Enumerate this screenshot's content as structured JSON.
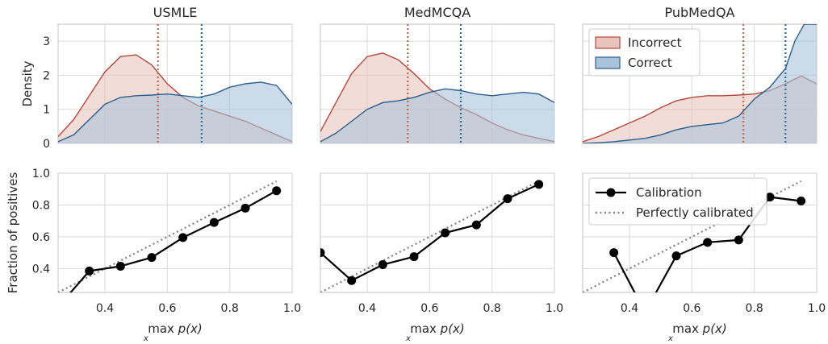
{
  "figure": {
    "density_ylabel": "Density",
    "calibration_ylabel": "Fraction of positives",
    "xlabel_main": "max p(x)",
    "xlabel_sub": "x"
  },
  "colors": {
    "incorrect_line": "#b5483a",
    "incorrect_fill": "#e9c4bd",
    "correct_line": "#2c5f8d",
    "correct_fill": "#aac3da",
    "incorrect_vline": "#b86a4e",
    "correct_vline": "#2e6a98",
    "calibration": "#000000",
    "perfect": "#7f7f7f"
  },
  "chart_data": [
    {
      "type": "area",
      "panel": "density",
      "title": "USMLE",
      "xlim": [
        0.25,
        1.0
      ],
      "ylim": [
        0,
        3.5
      ],
      "xticks": [
        0.4,
        0.6,
        0.8,
        1.0
      ],
      "yticks": [
        0,
        1,
        2,
        3
      ],
      "series": [
        {
          "name": "Incorrect",
          "x": [
            0.25,
            0.3,
            0.35,
            0.4,
            0.45,
            0.5,
            0.55,
            0.6,
            0.65,
            0.7,
            0.75,
            0.8,
            0.85,
            0.9,
            0.95,
            1.0
          ],
          "y": [
            0.2,
            0.7,
            1.4,
            2.1,
            2.55,
            2.6,
            2.3,
            1.75,
            1.35,
            1.1,
            0.95,
            0.8,
            0.65,
            0.45,
            0.25,
            0.05
          ]
        },
        {
          "name": "Correct",
          "x": [
            0.25,
            0.3,
            0.35,
            0.4,
            0.45,
            0.5,
            0.55,
            0.6,
            0.65,
            0.7,
            0.75,
            0.8,
            0.85,
            0.9,
            0.95,
            1.0
          ],
          "y": [
            0.05,
            0.25,
            0.7,
            1.15,
            1.35,
            1.4,
            1.42,
            1.45,
            1.4,
            1.35,
            1.45,
            1.65,
            1.75,
            1.8,
            1.7,
            1.15
          ]
        }
      ],
      "vlines": {
        "incorrect": 0.57,
        "correct": 0.71
      }
    },
    {
      "type": "area",
      "panel": "density",
      "title": "MedMCQA",
      "xlim": [
        0.25,
        1.0
      ],
      "ylim": [
        0,
        3.5
      ],
      "xticks": [
        0.4,
        0.6,
        0.8,
        1.0
      ],
      "yticks": [
        0,
        1,
        2,
        3
      ],
      "series": [
        {
          "name": "Incorrect",
          "x": [
            0.25,
            0.3,
            0.35,
            0.4,
            0.45,
            0.5,
            0.55,
            0.6,
            0.65,
            0.7,
            0.75,
            0.8,
            0.85,
            0.9,
            0.95,
            1.0
          ],
          "y": [
            0.35,
            1.2,
            2.05,
            2.55,
            2.65,
            2.45,
            2.05,
            1.6,
            1.3,
            1.05,
            0.85,
            0.6,
            0.4,
            0.25,
            0.15,
            0.05
          ]
        },
        {
          "name": "Correct",
          "x": [
            0.25,
            0.3,
            0.35,
            0.4,
            0.45,
            0.5,
            0.55,
            0.6,
            0.65,
            0.7,
            0.75,
            0.8,
            0.85,
            0.9,
            0.95,
            1.0
          ],
          "y": [
            0.05,
            0.3,
            0.65,
            1.0,
            1.2,
            1.25,
            1.35,
            1.5,
            1.6,
            1.55,
            1.45,
            1.4,
            1.45,
            1.5,
            1.45,
            1.2
          ]
        }
      ],
      "vlines": {
        "incorrect": 0.53,
        "correct": 0.7
      }
    },
    {
      "type": "area",
      "panel": "density",
      "title": "PubMedQA",
      "xlim": [
        0.25,
        1.0
      ],
      "ylim": [
        0,
        3.5
      ],
      "xticks": [
        0.4,
        0.6,
        0.8,
        1.0
      ],
      "yticks": [
        0,
        1,
        2,
        3
      ],
      "legend": {
        "location": "upper-left",
        "entries": [
          "Incorrect",
          "Correct"
        ]
      },
      "series": [
        {
          "name": "Incorrect",
          "x": [
            0.25,
            0.3,
            0.35,
            0.4,
            0.45,
            0.5,
            0.55,
            0.6,
            0.65,
            0.7,
            0.75,
            0.8,
            0.85,
            0.9,
            0.95,
            1.0
          ],
          "y": [
            0.05,
            0.2,
            0.4,
            0.6,
            0.8,
            1.05,
            1.25,
            1.35,
            1.4,
            1.4,
            1.42,
            1.45,
            1.55,
            1.75,
            1.98,
            1.75
          ]
        },
        {
          "name": "Correct",
          "x": [
            0.25,
            0.3,
            0.35,
            0.4,
            0.45,
            0.5,
            0.55,
            0.6,
            0.65,
            0.7,
            0.75,
            0.8,
            0.85,
            0.9,
            0.93,
            0.96,
            1.0
          ],
          "y": [
            0.0,
            0.02,
            0.05,
            0.1,
            0.15,
            0.25,
            0.4,
            0.5,
            0.55,
            0.6,
            0.8,
            1.3,
            1.65,
            2.2,
            3.0,
            3.5,
            3.5
          ]
        }
      ],
      "vlines": {
        "incorrect": 0.765,
        "correct": 0.9
      }
    },
    {
      "type": "line",
      "panel": "calibration",
      "xlim": [
        0.25,
        1.0
      ],
      "ylim": [
        0.25,
        1.0
      ],
      "xticks": [
        0.4,
        0.6,
        0.8,
        1.0
      ],
      "yticks": [
        0.4,
        0.6,
        0.8,
        1.0
      ],
      "series": [
        {
          "name": "Calibration",
          "x": [
            0.25,
            0.35,
            0.45,
            0.55,
            0.65,
            0.75,
            0.85,
            0.95
          ],
          "y": [
            0.16,
            0.385,
            0.415,
            0.47,
            0.595,
            0.69,
            0.78,
            0.89
          ],
          "markers": [
            false,
            true,
            true,
            true,
            true,
            true,
            true,
            true
          ]
        },
        {
          "name": "Perfectly calibrated",
          "x": [
            0.25,
            0.95
          ],
          "y": [
            0.25,
            0.95
          ]
        }
      ]
    },
    {
      "type": "line",
      "panel": "calibration",
      "xlim": [
        0.25,
        1.0
      ],
      "ylim": [
        0.25,
        1.0
      ],
      "xticks": [
        0.4,
        0.6,
        0.8,
        1.0
      ],
      "yticks": [
        0.4,
        0.6,
        0.8,
        1.0
      ],
      "series": [
        {
          "name": "Calibration",
          "x": [
            0.25,
            0.35,
            0.45,
            0.55,
            0.65,
            0.75,
            0.85,
            0.95
          ],
          "y": [
            0.5,
            0.325,
            0.425,
            0.475,
            0.625,
            0.675,
            0.84,
            0.93
          ],
          "markers": [
            true,
            true,
            true,
            true,
            true,
            true,
            true,
            true
          ]
        },
        {
          "name": "Perfectly calibrated",
          "x": [
            0.25,
            0.95
          ],
          "y": [
            0.25,
            0.95
          ]
        }
      ]
    },
    {
      "type": "line",
      "panel": "calibration",
      "xlim": [
        0.25,
        1.0
      ],
      "ylim": [
        0.25,
        1.0
      ],
      "xticks": [
        0.4,
        0.6,
        0.8,
        1.0
      ],
      "yticks": [
        0.4,
        0.6,
        0.8,
        1.0
      ],
      "legend": {
        "location": "upper-left",
        "entries": [
          "Calibration",
          "Perfectly calibrated"
        ]
      },
      "series": [
        {
          "name": "Calibration",
          "x": [
            0.35,
            0.45,
            0.55,
            0.65,
            0.75,
            0.85,
            0.95
          ],
          "y": [
            0.5,
            0.125,
            0.48,
            0.565,
            0.58,
            0.85,
            0.825
          ],
          "markers": [
            true,
            false,
            true,
            true,
            true,
            true,
            true
          ]
        },
        {
          "name": "Perfectly calibrated",
          "x": [
            0.25,
            0.95
          ],
          "y": [
            0.25,
            0.95
          ]
        }
      ]
    }
  ]
}
